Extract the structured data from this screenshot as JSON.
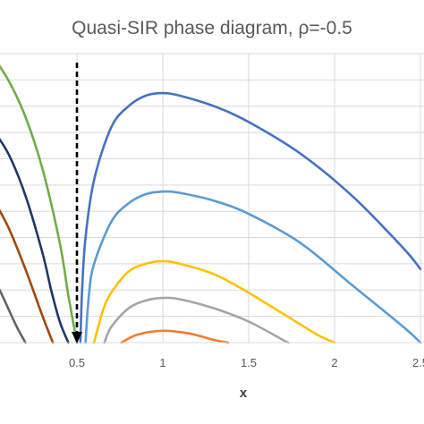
{
  "chart_data": {
    "type": "line",
    "title": "Quasi-SIR phase diagram, ρ=-0.5",
    "xlabel": "x",
    "ylabel": "",
    "xlim": [
      0,
      2.5
    ],
    "ylim": [
      0,
      1.1
    ],
    "x_ticks": [
      {
        "value": 0.5,
        "label": "0.5"
      },
      {
        "value": 1,
        "label": "1"
      },
      {
        "value": 1.5,
        "label": "1.5"
      },
      {
        "value": 2,
        "label": "2"
      },
      {
        "value": 2.5,
        "label": "2.5"
      }
    ],
    "y_gridlines": [
      0.1,
      0.2,
      0.3,
      0.4,
      0.5,
      0.6,
      0.7,
      0.8,
      0.9,
      1.0,
      1.1
    ],
    "grid": true,
    "legend": "none",
    "marker_line": {
      "x": 0.5,
      "style": "dashed-arrow",
      "color": "#000000"
    },
    "series": [
      {
        "color": "#4472C4",
        "x": [
          0.52,
          0.53,
          0.55,
          0.6,
          0.7,
          0.8,
          0.9,
          1.0,
          1.1,
          1.3,
          1.5,
          1.8,
          2.1,
          2.4,
          2.5
        ],
        "y": [
          0,
          0.2,
          0.4,
          0.62,
          0.82,
          0.9,
          0.94,
          0.95,
          0.94,
          0.9,
          0.84,
          0.72,
          0.56,
          0.36,
          0.28
        ]
      },
      {
        "color": "#5B9BD5",
        "x": [
          0.55,
          0.57,
          0.6,
          0.7,
          0.8,
          0.9,
          1.0,
          1.1,
          1.3,
          1.5,
          1.8,
          2.1,
          2.4,
          2.5
        ],
        "y": [
          0,
          0.18,
          0.3,
          0.46,
          0.53,
          0.565,
          0.575,
          0.57,
          0.54,
          0.49,
          0.38,
          0.22,
          0.06,
          0
        ]
      },
      {
        "color": "#FFC000",
        "x": [
          0.6,
          0.65,
          0.7,
          0.8,
          0.9,
          1.0,
          1.1,
          1.3,
          1.5,
          1.7,
          1.9,
          2.0
        ],
        "y": [
          0,
          0.12,
          0.19,
          0.27,
          0.3,
          0.31,
          0.3,
          0.26,
          0.19,
          0.11,
          0.03,
          0
        ]
      },
      {
        "color": "#A5A5A5",
        "x": [
          0.66,
          0.7,
          0.8,
          0.9,
          1.0,
          1.1,
          1.3,
          1.5,
          1.7,
          1.73
        ],
        "y": [
          0,
          0.06,
          0.13,
          0.16,
          0.17,
          0.165,
          0.13,
          0.08,
          0.01,
          0
        ]
      },
      {
        "color": "#ED7D31",
        "x": [
          0.76,
          0.85,
          1.0,
          1.15,
          1.3,
          1.38
        ],
        "y": [
          0,
          0.03,
          0.045,
          0.035,
          0.01,
          0
        ]
      },
      {
        "color": "#70AD47",
        "x": [
          0,
          0.1,
          0.2,
          0.3,
          0.4,
          0.45,
          0.5
        ],
        "y": [
          1.1,
          1.0,
          0.86,
          0.66,
          0.38,
          0.18,
          0
        ]
      },
      {
        "color": "#1F3864",
        "x": [
          0,
          0.1,
          0.2,
          0.3,
          0.35,
          0.4,
          0.45
        ],
        "y": [
          0.82,
          0.72,
          0.56,
          0.34,
          0.2,
          0.08,
          0
        ]
      },
      {
        "color": "#9E480E",
        "x": [
          0,
          0.1,
          0.2,
          0.3,
          0.36
        ],
        "y": [
          0.56,
          0.44,
          0.28,
          0.1,
          0
        ]
      },
      {
        "color": "#636363",
        "x": [
          0,
          0.05,
          0.1,
          0.15,
          0.2
        ],
        "y": [
          0.26,
          0.2,
          0.13,
          0.06,
          0
        ]
      }
    ]
  }
}
